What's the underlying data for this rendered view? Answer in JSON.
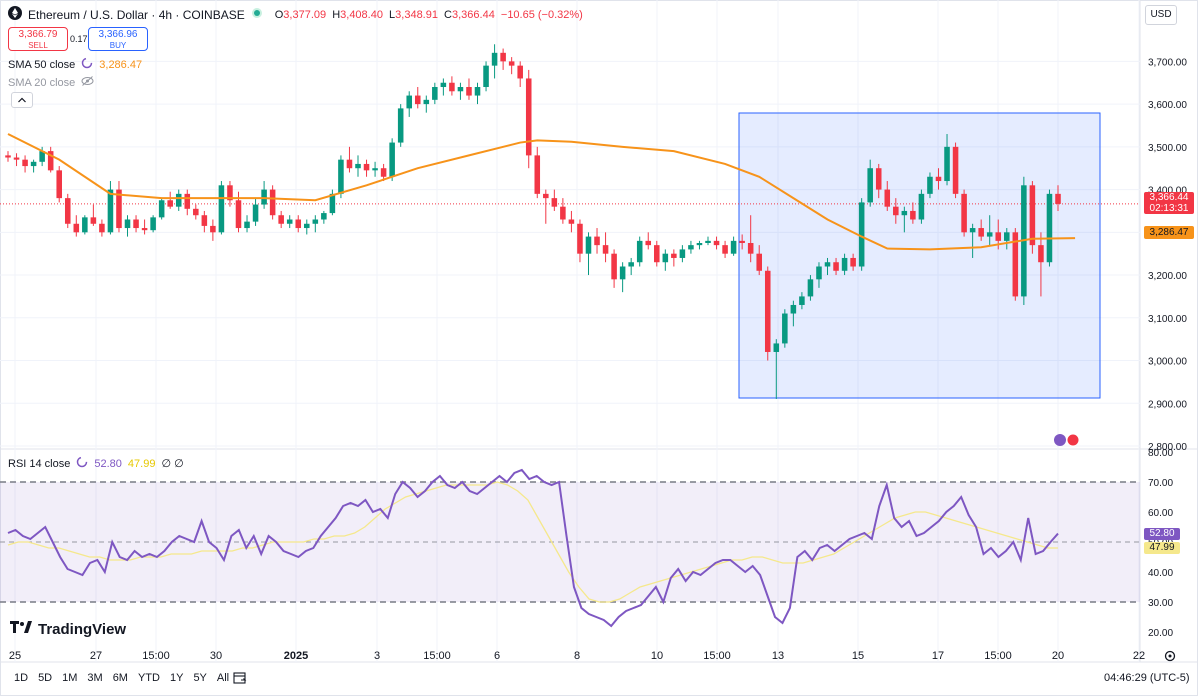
{
  "header": {
    "symbol": "Ethereum / U.S. Dollar · 4h · COINBASE",
    "ohlc": [
      {
        "label": "O",
        "value": "3,377.09"
      },
      {
        "label": "H",
        "value": "3,408.40"
      },
      {
        "label": "L",
        "value": "3,348.91"
      },
      {
        "label": "C",
        "value": "3,366.44"
      }
    ],
    "change": "−10.65 (−0.32%)",
    "sell_price": "3,366.79",
    "sell_label": "SELL",
    "spread": "0.17",
    "buy_price": "3,366.96",
    "buy_label": "BUY",
    "currency": "USD"
  },
  "indicators": {
    "sma50": {
      "label": "SMA 50 close",
      "value": "3,286.47",
      "color": "#f7931a"
    },
    "sma20": {
      "label": "SMA 20 close"
    },
    "rsi": {
      "label": "RSI 14 close",
      "value": "52.80",
      "ma_value": "47.99",
      "extra": "∅ ∅",
      "color": "#7e57c2",
      "ma_color": "#f5e88c"
    }
  },
  "price_axis": {
    "ticks": [
      "3,700.00",
      "3,600.00",
      "3,500.00",
      "3,400.00",
      "3,300.00",
      "3,200.00",
      "3,100.00",
      "3,000.00",
      "2,900.00",
      "2,800.00"
    ],
    "current_price": "3,366.44",
    "countdown": "02:13:31",
    "sma_price": "3,286.47"
  },
  "rsi_axis": {
    "ticks": [
      "80.00",
      "70.00",
      "60.00",
      "50.00",
      "40.00",
      "30.00",
      "20.00"
    ],
    "current": "52.80",
    "ma": "47.99"
  },
  "time_axis": {
    "labels": [
      "25",
      "27",
      "15:00",
      "30",
      "2025",
      "3",
      "15:00",
      "6",
      "8",
      "10",
      "15:00",
      "13",
      "15",
      "17",
      "15:00",
      "20",
      "22"
    ]
  },
  "bottom_bar": {
    "periods": [
      "1D",
      "5D",
      "1M",
      "3M",
      "6M",
      "YTD",
      "1Y",
      "5Y",
      "All"
    ],
    "clock": "04:46:29 (UTC-5)"
  },
  "branding": "TradingView",
  "chart_data": [
    {
      "type": "candlestick",
      "title": "Ethereum / U.S. Dollar · 4h · COINBASE",
      "ylim": [
        2800,
        3750
      ],
      "up_color": "#089981",
      "down_color": "#f23645",
      "candles": [
        [
          3480,
          3490,
          3465,
          3475
        ],
        [
          3475,
          3485,
          3455,
          3470
        ],
        [
          3470,
          3480,
          3440,
          3455
        ],
        [
          3455,
          3470,
          3440,
          3465
        ],
        [
          3465,
          3500,
          3455,
          3490
        ],
        [
          3490,
          3500,
          3440,
          3445
        ],
        [
          3445,
          3455,
          3370,
          3380
        ],
        [
          3380,
          3390,
          3310,
          3320
        ],
        [
          3320,
          3340,
          3290,
          3300
        ],
        [
          3300,
          3340,
          3295,
          3335
        ],
        [
          3335,
          3365,
          3315,
          3320
        ],
        [
          3320,
          3330,
          3290,
          3300
        ],
        [
          3300,
          3420,
          3295,
          3400
        ],
        [
          3400,
          3420,
          3300,
          3310
        ],
        [
          3310,
          3340,
          3290,
          3330
        ],
        [
          3330,
          3340,
          3300,
          3310
        ],
        [
          3310,
          3330,
          3295,
          3305
        ],
        [
          3305,
          3340,
          3300,
          3335
        ],
        [
          3335,
          3380,
          3330,
          3375
        ],
        [
          3375,
          3395,
          3355,
          3360
        ],
        [
          3360,
          3400,
          3350,
          3390
        ],
        [
          3390,
          3400,
          3340,
          3355
        ],
        [
          3355,
          3365,
          3330,
          3340
        ],
        [
          3340,
          3350,
          3300,
          3315
        ],
        [
          3315,
          3330,
          3280,
          3300
        ],
        [
          3300,
          3420,
          3295,
          3410
        ],
        [
          3410,
          3420,
          3360,
          3375
        ],
        [
          3375,
          3395,
          3300,
          3310
        ],
        [
          3310,
          3340,
          3300,
          3325
        ],
        [
          3325,
          3380,
          3315,
          3365
        ],
        [
          3365,
          3420,
          3355,
          3400
        ],
        [
          3400,
          3410,
          3330,
          3340
        ],
        [
          3340,
          3350,
          3310,
          3320
        ],
        [
          3320,
          3340,
          3310,
          3330
        ],
        [
          3330,
          3340,
          3300,
          3310
        ],
        [
          3310,
          3330,
          3295,
          3320
        ],
        [
          3320,
          3340,
          3300,
          3330
        ],
        [
          3330,
          3350,
          3320,
          3345
        ],
        [
          3345,
          3400,
          3340,
          3390
        ],
        [
          3390,
          3480,
          3380,
          3470
        ],
        [
          3470,
          3500,
          3440,
          3450
        ],
        [
          3450,
          3480,
          3430,
          3460
        ],
        [
          3460,
          3470,
          3430,
          3445
        ],
        [
          3445,
          3465,
          3430,
          3450
        ],
        [
          3450,
          3460,
          3420,
          3430
        ],
        [
          3430,
          3520,
          3420,
          3510
        ],
        [
          3510,
          3600,
          3500,
          3590
        ],
        [
          3590,
          3630,
          3570,
          3620
        ],
        [
          3620,
          3640,
          3590,
          3600
        ],
        [
          3600,
          3620,
          3580,
          3610
        ],
        [
          3610,
          3650,
          3600,
          3640
        ],
        [
          3640,
          3660,
          3620,
          3650
        ],
        [
          3650,
          3665,
          3620,
          3630
        ],
        [
          3630,
          3650,
          3610,
          3640
        ],
        [
          3640,
          3660,
          3610,
          3620
        ],
        [
          3620,
          3650,
          3600,
          3640
        ],
        [
          3640,
          3700,
          3630,
          3690
        ],
        [
          3690,
          3740,
          3660,
          3720
        ],
        [
          3720,
          3730,
          3680,
          3700
        ],
        [
          3700,
          3710,
          3670,
          3690
        ],
        [
          3690,
          3700,
          3640,
          3660
        ],
        [
          3660,
          3680,
          3450,
          3480
        ],
        [
          3480,
          3500,
          3380,
          3390
        ],
        [
          3390,
          3400,
          3320,
          3380
        ],
        [
          3380,
          3400,
          3350,
          3360
        ],
        [
          3360,
          3380,
          3320,
          3330
        ],
        [
          3330,
          3350,
          3300,
          3320
        ],
        [
          3320,
          3330,
          3230,
          3250
        ],
        [
          3250,
          3300,
          3200,
          3290
        ],
        [
          3290,
          3310,
          3250,
          3270
        ],
        [
          3270,
          3300,
          3230,
          3250
        ],
        [
          3250,
          3260,
          3170,
          3190
        ],
        [
          3190,
          3230,
          3160,
          3220
        ],
        [
          3220,
          3240,
          3200,
          3230
        ],
        [
          3230,
          3290,
          3220,
          3280
        ],
        [
          3280,
          3300,
          3260,
          3270
        ],
        [
          3270,
          3280,
          3220,
          3230
        ],
        [
          3230,
          3260,
          3210,
          3250
        ],
        [
          3250,
          3260,
          3220,
          3240
        ],
        [
          3240,
          3270,
          3230,
          3260
        ],
        [
          3260,
          3280,
          3250,
          3270
        ],
        [
          3270,
          3280,
          3260,
          3275
        ],
        [
          3275,
          3290,
          3270,
          3280
        ],
        [
          3280,
          3290,
          3260,
          3270
        ],
        [
          3270,
          3280,
          3240,
          3250
        ],
        [
          3250,
          3290,
          3245,
          3280
        ],
        [
          3280,
          3295,
          3260,
          3275
        ],
        [
          3275,
          3340,
          3230,
          3250
        ],
        [
          3250,
          3270,
          3200,
          3210
        ],
        [
          3210,
          3220,
          3000,
          3020
        ],
        [
          3020,
          3050,
          2910,
          3040
        ],
        [
          3040,
          3120,
          3030,
          3110
        ],
        [
          3110,
          3140,
          3080,
          3130
        ],
        [
          3130,
          3160,
          3120,
          3150
        ],
        [
          3150,
          3200,
          3140,
          3190
        ],
        [
          3190,
          3230,
          3170,
          3220
        ],
        [
          3220,
          3240,
          3200,
          3230
        ],
        [
          3230,
          3240,
          3200,
          3210
        ],
        [
          3210,
          3250,
          3200,
          3240
        ],
        [
          3240,
          3250,
          3210,
          3220
        ],
        [
          3220,
          3380,
          3210,
          3370
        ],
        [
          3370,
          3470,
          3360,
          3450
        ],
        [
          3450,
          3460,
          3380,
          3400
        ],
        [
          3400,
          3420,
          3350,
          3360
        ],
        [
          3360,
          3380,
          3320,
          3340
        ],
        [
          3340,
          3360,
          3300,
          3350
        ],
        [
          3350,
          3370,
          3320,
          3330
        ],
        [
          3330,
          3400,
          3320,
          3390
        ],
        [
          3390,
          3440,
          3380,
          3430
        ],
        [
          3430,
          3450,
          3400,
          3420
        ],
        [
          3420,
          3530,
          3410,
          3500
        ],
        [
          3500,
          3510,
          3380,
          3390
        ],
        [
          3390,
          3400,
          3290,
          3300
        ],
        [
          3300,
          3320,
          3240,
          3310
        ],
        [
          3310,
          3330,
          3280,
          3290
        ],
        [
          3290,
          3340,
          3270,
          3300
        ],
        [
          3300,
          3330,
          3260,
          3280
        ],
        [
          3280,
          3310,
          3260,
          3300
        ],
        [
          3300,
          3310,
          3140,
          3150
        ],
        [
          3150,
          3430,
          3130,
          3410
        ],
        [
          3410,
          3420,
          3250,
          3270
        ],
        [
          3270,
          3300,
          3150,
          3230
        ],
        [
          3230,
          3400,
          3220,
          3390
        ],
        [
          3390,
          3410,
          3350,
          3366.44
        ]
      ],
      "sma50": [
        [
          0,
          3530
        ],
        [
          6,
          3470
        ],
        [
          12,
          3390
        ],
        [
          18,
          3380
        ],
        [
          24,
          3380
        ],
        [
          30,
          3380
        ],
        [
          36,
          3375
        ],
        [
          42,
          3410
        ],
        [
          48,
          3450
        ],
        [
          54,
          3480
        ],
        [
          60,
          3510
        ],
        [
          62,
          3515
        ],
        [
          66,
          3512
        ],
        [
          72,
          3500
        ],
        [
          78,
          3490
        ],
        [
          84,
          3460
        ],
        [
          88,
          3430
        ],
        [
          92,
          3380
        ],
        [
          96,
          3330
        ],
        [
          100,
          3290
        ],
        [
          103,
          3262
        ],
        [
          108,
          3260
        ],
        [
          114,
          3265
        ],
        [
          120,
          3285
        ],
        [
          125,
          3286.47
        ]
      ]
    },
    {
      "type": "line",
      "title": "RSI 14 close",
      "ylim": [
        20,
        80
      ],
      "levels": [
        70,
        50,
        30
      ],
      "series": [
        {
          "name": "RSI 14 close",
          "values": [
            53,
            54,
            52,
            51,
            53,
            55,
            50,
            45,
            41,
            40,
            39,
            43,
            44,
            40,
            50,
            45,
            44,
            47,
            45,
            46,
            45,
            47,
            50,
            52,
            51,
            50,
            57,
            50,
            48,
            44,
            52,
            54,
            48,
            52,
            46,
            52,
            50,
            47,
            46,
            45,
            47,
            48,
            52,
            55,
            58,
            62,
            63,
            62,
            64,
            60,
            61,
            58,
            66,
            70,
            68,
            65,
            67,
            70,
            72,
            69,
            68,
            70,
            67,
            66,
            68,
            70,
            72,
            70,
            73,
            74,
            71,
            72,
            70,
            69,
            70,
            52,
            35,
            28,
            26,
            25,
            24,
            22,
            25,
            27,
            28,
            29,
            32,
            35,
            30,
            38,
            41,
            37,
            40,
            39,
            41,
            43,
            44,
            44,
            42,
            40,
            42,
            39,
            32,
            25,
            23,
            28,
            45,
            47,
            44,
            48,
            49,
            47,
            49,
            51,
            52,
            53,
            51,
            62,
            69,
            58,
            55,
            57,
            52,
            53,
            55,
            57,
            60,
            62,
            65,
            59,
            55,
            46,
            48,
            45,
            47,
            50,
            44,
            58,
            46,
            47,
            50,
            52.8
          ]
        },
        {
          "name": "RSI-based MA",
          "values": [
            49,
            50,
            50,
            49,
            48,
            48,
            47,
            46,
            45,
            45,
            44,
            44,
            44,
            45,
            45,
            45,
            46,
            46,
            46,
            47,
            47,
            47,
            47,
            48,
            48,
            49,
            50,
            50,
            50,
            50,
            51,
            51,
            52,
            52,
            53,
            55,
            58,
            61,
            63,
            65,
            66,
            67,
            68,
            69,
            69,
            69,
            69,
            69,
            70,
            69,
            67,
            64,
            58,
            52,
            46,
            40,
            35,
            31,
            30,
            30,
            31,
            33,
            35,
            36,
            37,
            38,
            39,
            40,
            41,
            42,
            43,
            44,
            44,
            45,
            45,
            44,
            43,
            43,
            43,
            44,
            45,
            46,
            48,
            50,
            52,
            54,
            56,
            58,
            59,
            60,
            60,
            59,
            58,
            57,
            56,
            55,
            54,
            53,
            52,
            51,
            50,
            49,
            48,
            47.99
          ]
        }
      ]
    }
  ]
}
